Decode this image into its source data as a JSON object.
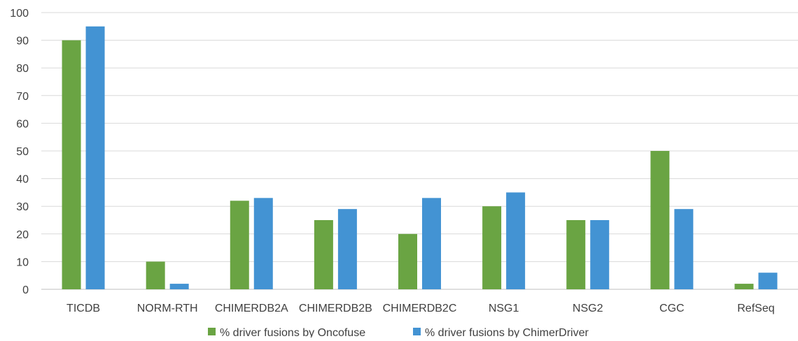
{
  "chart_data": {
    "type": "bar",
    "categories": [
      "TICDB",
      "NORM-RTH",
      "CHIMERDB2A",
      "CHIMERDB2B",
      "CHIMERDB2C",
      "NSG1",
      "NSG2",
      "CGC",
      "RefSeq"
    ],
    "series": [
      {
        "name": "% driver fusions by Oncofuse",
        "color": "#6aa443",
        "values": [
          90,
          10,
          32,
          25,
          20,
          30,
          25,
          50,
          2
        ]
      },
      {
        "name": "% driver fusions by ChimerDriver",
        "color": "#4393d3",
        "values": [
          95,
          2,
          33,
          29,
          33,
          35,
          25,
          29,
          6
        ]
      }
    ],
    "ylim": [
      0,
      100
    ],
    "yticks": [
      0,
      10,
      20,
      30,
      40,
      50,
      60,
      70,
      80,
      90,
      100
    ],
    "grid": true,
    "legend_position": "bottom"
  }
}
